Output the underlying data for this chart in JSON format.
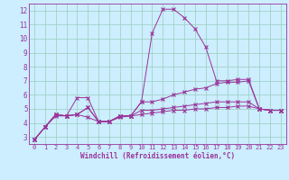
{
  "xlabel": "Windchill (Refroidissement éolien,°C)",
  "bg_color": "#cceeff",
  "line_color": "#993399",
  "grid_color": "#99ccbb",
  "xlim": [
    -0.5,
    23.5
  ],
  "ylim": [
    2.5,
    12.5
  ],
  "xticks": [
    0,
    1,
    2,
    3,
    4,
    5,
    6,
    7,
    8,
    9,
    10,
    11,
    12,
    13,
    14,
    15,
    16,
    17,
    18,
    19,
    20,
    21,
    22,
    23
  ],
  "yticks": [
    3,
    4,
    5,
    6,
    7,
    8,
    9,
    10,
    11,
    12
  ],
  "series": [
    [
      2.8,
      3.7,
      4.6,
      4.5,
      5.8,
      5.8,
      4.1,
      4.1,
      4.5,
      4.5,
      5.5,
      10.4,
      12.1,
      12.1,
      11.5,
      10.7,
      9.4,
      7.0,
      7.0,
      7.1,
      7.1,
      5.0,
      4.9,
      4.9
    ],
    [
      2.8,
      3.7,
      4.6,
      4.5,
      4.6,
      5.1,
      4.1,
      4.1,
      4.5,
      4.5,
      5.5,
      5.5,
      5.7,
      6.0,
      6.2,
      6.4,
      6.5,
      6.8,
      6.9,
      6.9,
      7.0,
      5.0,
      4.9,
      4.9
    ],
    [
      2.8,
      3.7,
      4.6,
      4.5,
      4.6,
      5.1,
      4.1,
      4.1,
      4.5,
      4.5,
      4.9,
      4.9,
      5.0,
      5.1,
      5.2,
      5.3,
      5.4,
      5.5,
      5.5,
      5.5,
      5.5,
      5.0,
      4.9,
      4.9
    ],
    [
      2.8,
      3.7,
      4.5,
      4.5,
      4.6,
      4.4,
      4.1,
      4.1,
      4.4,
      4.5,
      4.6,
      4.7,
      4.8,
      4.9,
      4.9,
      5.0,
      5.0,
      5.1,
      5.1,
      5.2,
      5.2,
      5.0,
      4.9,
      4.9
    ]
  ]
}
